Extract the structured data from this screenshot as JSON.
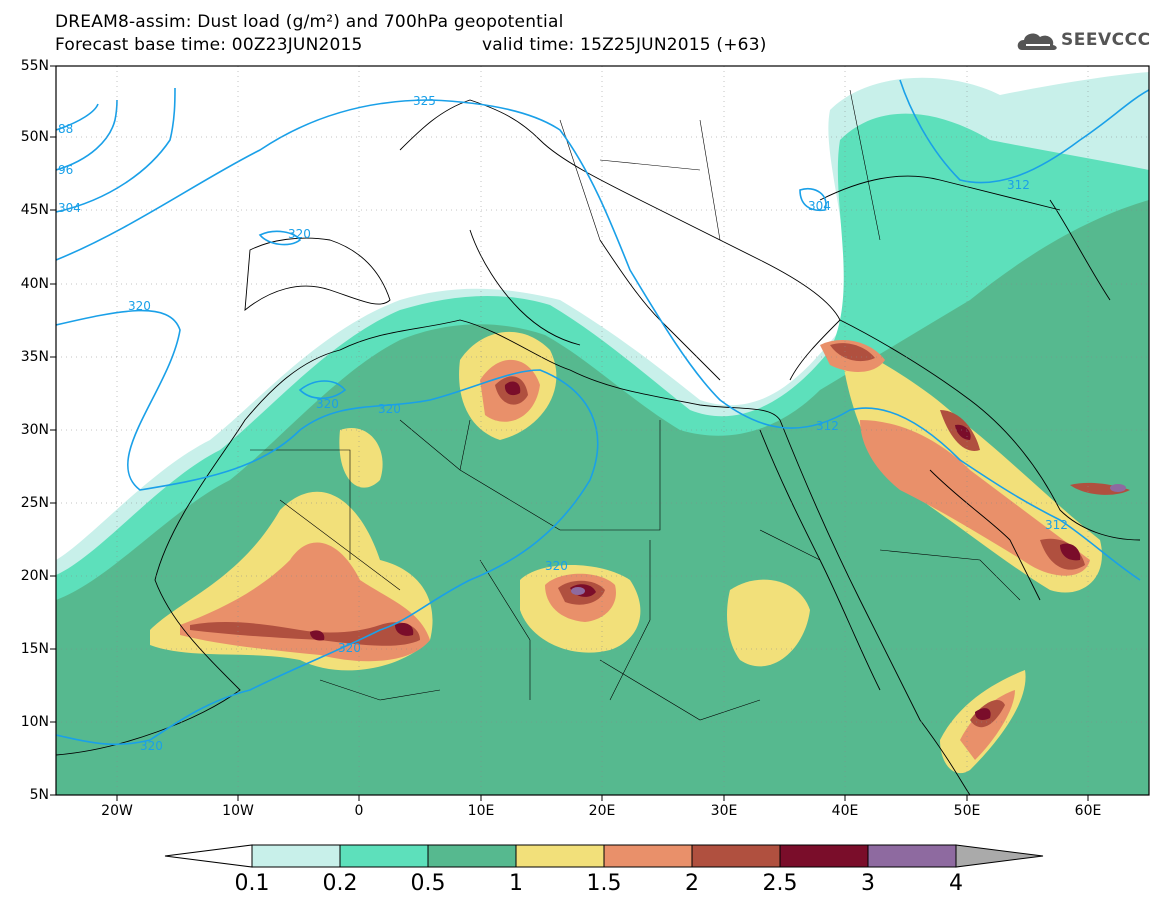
{
  "header": {
    "title_line1": "DREAM8-assim: Dust load (g/m²) and 700hPa geopotential",
    "title_line2_left": "Forecast base time: 00Z23JUN2015",
    "title_line2_right": "valid time: 15Z25JUN2015 (+63)",
    "logo_text": "SEEVCCC"
  },
  "axes": {
    "lat_labels": [
      "55N",
      "50N",
      "45N",
      "40N",
      "35N",
      "30N",
      "25N",
      "20N",
      "15N",
      "10N",
      "5N"
    ],
    "lon_labels": [
      "20W",
      "10W",
      "0",
      "10E",
      "20E",
      "30E",
      "40E",
      "50E",
      "60E"
    ]
  },
  "contour_labels": [
    "88",
    "96",
    "304",
    "320",
    "320",
    "320",
    "320",
    "320",
    "320",
    "320",
    "312",
    "312",
    "304",
    "312",
    "325"
  ],
  "colorbar": {
    "labels": [
      "0.1",
      "0.2",
      "0.5",
      "1",
      "1.5",
      "2",
      "2.5",
      "3",
      "4"
    ],
    "colors": [
      "#c8f0ea",
      "#5de0bb",
      "#56b98f",
      "#f2e07a",
      "#e9906a",
      "#b0503f",
      "#7a0d2a",
      "#8e6aa0"
    ]
  },
  "colors": {
    "land_border": "#000000",
    "contour": "#1aa0e8"
  }
}
